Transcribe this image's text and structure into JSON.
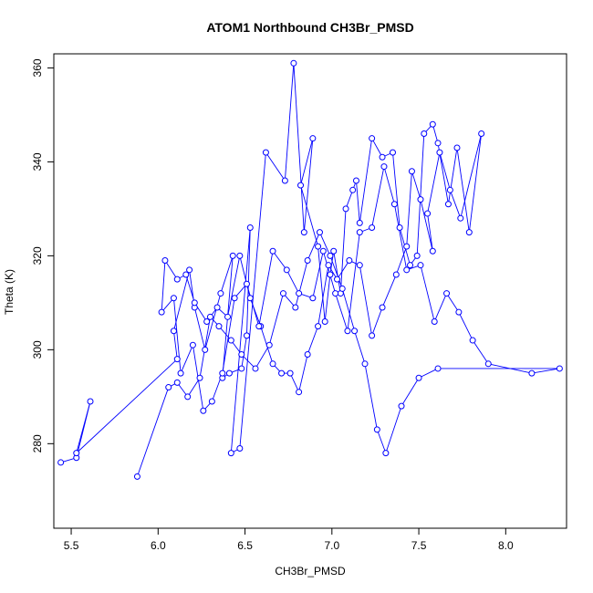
{
  "chart_data": {
    "type": "line",
    "title": "ATOM1 Northbound CH3Br_PMSD",
    "xlabel": "CH3Br_PMSD",
    "ylabel": "Theta (K)",
    "xlim": [
      5.4,
      8.35
    ],
    "ylim": [
      262,
      363
    ],
    "xticks": [
      "5.5",
      "6.0",
      "6.5",
      "7.0",
      "7.5",
      "8.0"
    ],
    "yticks": [
      "280",
      "300",
      "320",
      "340",
      "360"
    ],
    "grid": false,
    "legend": "none",
    "series_color": "#0000ff",
    "series": [
      {
        "x": [
          5.44,
          5.53,
          5.61,
          5.53,
          6.11,
          6.09,
          6.18,
          6.21,
          6.27,
          6.36,
          6.43,
          6.37,
          6.41,
          6.48,
          6.51,
          6.53,
          6.42,
          6.47,
          6.62,
          6.73,
          6.78,
          6.84,
          6.89,
          6.82,
          6.92,
          6.96,
          6.99,
          7.01,
          7.05,
          7.08,
          7.12,
          7.14,
          7.16,
          7.23,
          7.29,
          7.35,
          7.39,
          7.45,
          7.49,
          7.53,
          7.58,
          7.61,
          7.67,
          7.72,
          7.79,
          7.86,
          7.74,
          7.68,
          7.62,
          7.55,
          7.58,
          7.51,
          7.46,
          7.43,
          7.37,
          7.29,
          7.23,
          7.16,
          7.1,
          7.03,
          6.98,
          6.92,
          6.86,
          6.81,
          6.76,
          6.71,
          6.66,
          6.59,
          6.53,
          6.47,
          6.4,
          6.34,
          6.28,
          6.21,
          6.16,
          6.11,
          6.04,
          6.02,
          6.09,
          6.13,
          6.2,
          6.26,
          6.31,
          6.37,
          6.44,
          6.51,
          6.58,
          6.66,
          6.74,
          6.81,
          6.89,
          6.95,
          7.02,
          7.09,
          7.16,
          7.23,
          7.3,
          7.36,
          7.43,
          7.51,
          7.59,
          7.66,
          7.73,
          7.81,
          7.9,
          8.15,
          8.31,
          7.61,
          7.5,
          7.4,
          7.31,
          7.26,
          7.19,
          7.13,
          7.06,
          6.99,
          6.93,
          6.86,
          6.79,
          6.72,
          6.64,
          6.56,
          6.48,
          6.42,
          6.35,
          6.3,
          6.24,
          6.17,
          6.11,
          6.06,
          5.88
        ],
        "y": [
          276,
          277,
          289,
          278,
          298,
          304,
          317,
          309,
          300,
          312,
          320,
          294,
          295,
          296,
          303,
          326,
          278,
          279,
          342,
          336,
          361,
          325,
          345,
          335,
          322,
          306,
          316,
          321,
          312,
          330,
          334,
          336,
          327,
          345,
          341,
          342,
          326,
          318,
          320,
          346,
          348,
          344,
          331,
          343,
          325,
          346,
          328,
          334,
          342,
          329,
          321,
          332,
          338,
          322,
          316,
          309,
          303,
          318,
          319,
          315,
          318,
          305,
          299,
          291,
          295,
          295,
          297,
          305,
          311,
          320,
          307,
          309,
          306,
          310,
          316,
          315,
          319,
          308,
          311,
          295,
          301,
          287,
          289,
          295,
          311,
          314,
          305,
          321,
          317,
          312,
          311,
          321,
          312,
          304,
          325,
          326,
          339,
          331,
          317,
          318,
          306,
          312,
          308,
          302,
          297,
          295,
          296,
          296,
          294,
          288,
          278,
          283,
          297,
          304,
          313,
          320,
          325,
          319,
          309,
          312,
          301,
          296,
          299,
          302,
          305,
          307,
          294,
          290,
          293,
          292,
          273
        ]
      }
    ]
  }
}
